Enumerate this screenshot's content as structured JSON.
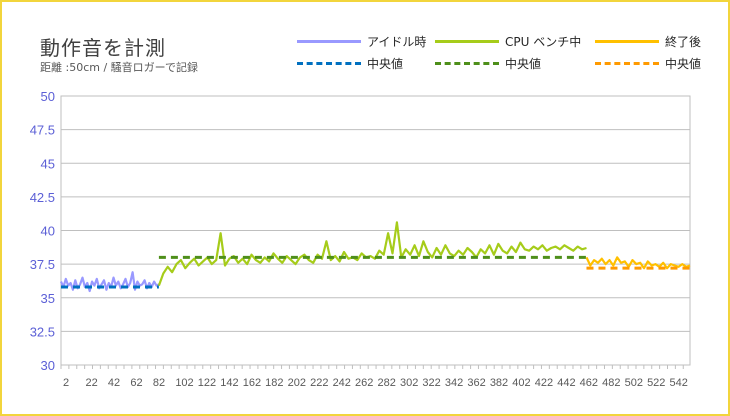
{
  "chart_data": {
    "type": "line",
    "title": "動作音を計測",
    "subtitle": "距離 :50cm / 騒音ロガーで記録",
    "ylim": [
      30,
      50
    ],
    "yticks": [
      "50",
      "47.5",
      "45",
      "42.5",
      "40",
      "37.5",
      "35",
      "32.5",
      "30"
    ],
    "xlabels": [
      "2",
      "22",
      "42",
      "62",
      "82",
      "102",
      "122",
      "142",
      "162",
      "182",
      "202",
      "222",
      "242",
      "262",
      "282",
      "302",
      "322",
      "342",
      "362",
      "382",
      "402",
      "422",
      "442",
      "462",
      "482",
      "502",
      "522",
      "542"
    ],
    "xlabels_text": "2  22  42  62  82 102 122 142 162 182 202 222 242 262 282 302 322 342 362 382 402 422 442 462 482 502 522 542",
    "x_count": 560,
    "grid": true,
    "legend_position": "top",
    "series": [
      {
        "name": "アイドル時",
        "color": "#9999ff",
        "x_range": [
          1,
          88
        ],
        "values": [
          36.2,
          35.8,
          36.4,
          35.9,
          36.1,
          35.6,
          36.3,
          35.7,
          36.0,
          36.5,
          35.8,
          36.1,
          35.5,
          36.2,
          35.9,
          36.4,
          35.7,
          36.0,
          36.3,
          35.6,
          36.1,
          35.8,
          36.5,
          35.9,
          36.2,
          35.7,
          36.0,
          36.4,
          35.8,
          36.1,
          36.9,
          35.6,
          36.2,
          35.9,
          36.0,
          36.3,
          35.7,
          36.1,
          35.8,
          36.2,
          35.9,
          36.0
        ]
      },
      {
        "name": "CPU ベンチ中",
        "color": "#a6cc1a",
        "x_range": [
          88,
          468
        ],
        "values": [
          35.9,
          36.8,
          37.3,
          36.9,
          37.5,
          37.8,
          37.2,
          37.6,
          37.9,
          37.4,
          37.7,
          38.0,
          37.5,
          37.8,
          39.8,
          37.4,
          37.9,
          38.1,
          37.6,
          37.9,
          37.5,
          38.2,
          37.8,
          37.6,
          38.0,
          37.7,
          38.3,
          37.9,
          37.6,
          38.1,
          37.8,
          37.5,
          38.0,
          38.2,
          37.8,
          37.6,
          38.2,
          37.9,
          39.2,
          37.8,
          38.1,
          37.7,
          38.4,
          37.9,
          38.0,
          37.8,
          38.3,
          38.0,
          38.1,
          37.9,
          38.5,
          38.2,
          39.8,
          38.3,
          40.6,
          38.0,
          38.6,
          38.2,
          38.9,
          38.1,
          39.2,
          38.4,
          38.0,
          38.7,
          38.2,
          38.9,
          38.3,
          38.1,
          38.5,
          38.2,
          38.7,
          38.4,
          38.0,
          38.6,
          38.3,
          38.9,
          38.2,
          39.0,
          38.5,
          38.3,
          38.8,
          38.4,
          39.1,
          38.6,
          38.5,
          38.8,
          38.6,
          38.9,
          38.5,
          38.7,
          38.8,
          38.6,
          38.9,
          38.7,
          38.5,
          38.8,
          38.6,
          38.7
        ]
      },
      {
        "name": "終了後",
        "color": "#ffc000",
        "x_range": [
          468,
          560
        ],
        "values": [
          38.0,
          37.4,
          37.8,
          37.6,
          37.9,
          37.5,
          37.8,
          37.4,
          38.0,
          37.6,
          37.7,
          37.3,
          37.8,
          37.5,
          37.6,
          37.2,
          37.7,
          37.4,
          37.5,
          37.3,
          37.6,
          37.2,
          37.5,
          37.4,
          37.3,
          37.5,
          37.3,
          37.4
        ]
      },
      {
        "name": "中央値",
        "color": "#0070c0",
        "dashed": true,
        "x_range": [
          1,
          88
        ],
        "value": 35.8
      },
      {
        "name": "中央値",
        "color": "#4e8f1a",
        "dashed": true,
        "x_range": [
          88,
          468
        ],
        "value": 38.0
      },
      {
        "name": "中央値",
        "color": "#ff9a00",
        "dashed": true,
        "x_range": [
          468,
          560
        ],
        "value": 37.2
      }
    ]
  }
}
